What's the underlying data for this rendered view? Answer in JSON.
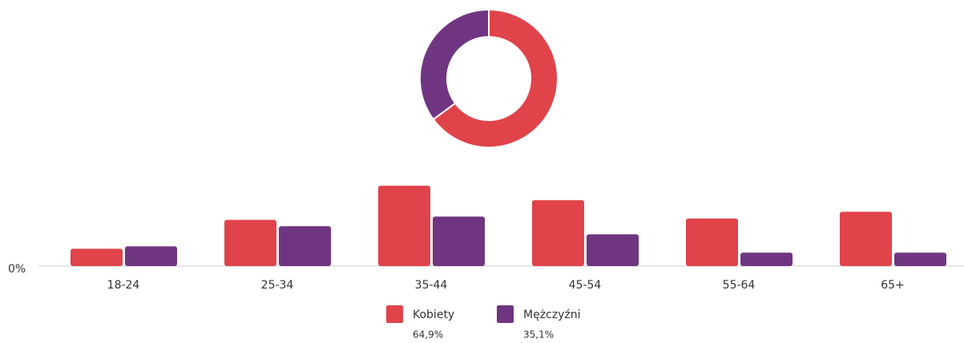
{
  "chart_data": [
    {
      "type": "pie",
      "donut": true,
      "categories": [
        "Kobiety",
        "Mężczyźni"
      ],
      "values": [
        64.9,
        35.1
      ],
      "value_labels": [
        "64,9%",
        "35,1%"
      ],
      "colors": [
        "#e0434a",
        "#703580"
      ]
    },
    {
      "type": "bar",
      "categories": [
        "18-24",
        "25-34",
        "35-44",
        "45-54",
        "55-64",
        "65+"
      ],
      "series": [
        {
          "name": "Kobiety",
          "color": "#e0434a",
          "values": [
            3.6,
            9.6,
            16.7,
            13.7,
            9.9,
            11.3
          ]
        },
        {
          "name": "Mężczyźni",
          "color": "#703580",
          "values": [
            4.1,
            8.3,
            10.3,
            6.6,
            2.8,
            2.8
          ]
        }
      ],
      "ylim": [
        0,
        22
      ],
      "yticks": [
        {
          "value": 0,
          "label": "0%"
        }
      ]
    }
  ]
}
